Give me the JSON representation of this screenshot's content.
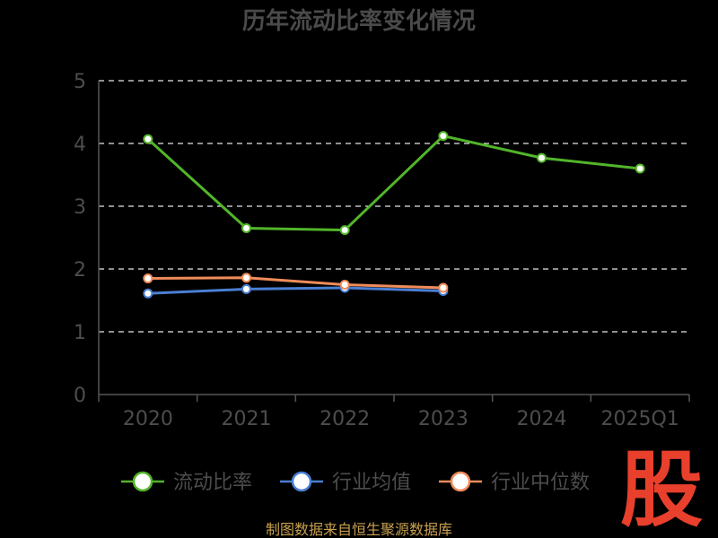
{
  "chart_data": {
    "type": "line",
    "title": "历年流动比率变化情况",
    "categories": [
      "2020",
      "2021",
      "2022",
      "2023",
      "2024",
      "2025Q1"
    ],
    "ylim": [
      0,
      5
    ],
    "yticks": [
      0,
      1,
      2,
      3,
      4,
      5
    ],
    "grid": "horizontal dashed",
    "legend_position": "bottom",
    "series": [
      {
        "name": "流动比率",
        "color": "#52b52a",
        "values": [
          4.07,
          2.65,
          2.62,
          4.12,
          3.77,
          3.6
        ]
      },
      {
        "name": "行业均值",
        "color": "#4a7fd4",
        "values": [
          1.61,
          1.68,
          1.7,
          1.65,
          null,
          null
        ]
      },
      {
        "name": "行业中位数",
        "color": "#f08c5a",
        "values": [
          1.85,
          1.86,
          1.75,
          1.7,
          null,
          null
        ]
      }
    ]
  },
  "source": "制图数据来自恒生聚源数据库",
  "watermark": "股"
}
